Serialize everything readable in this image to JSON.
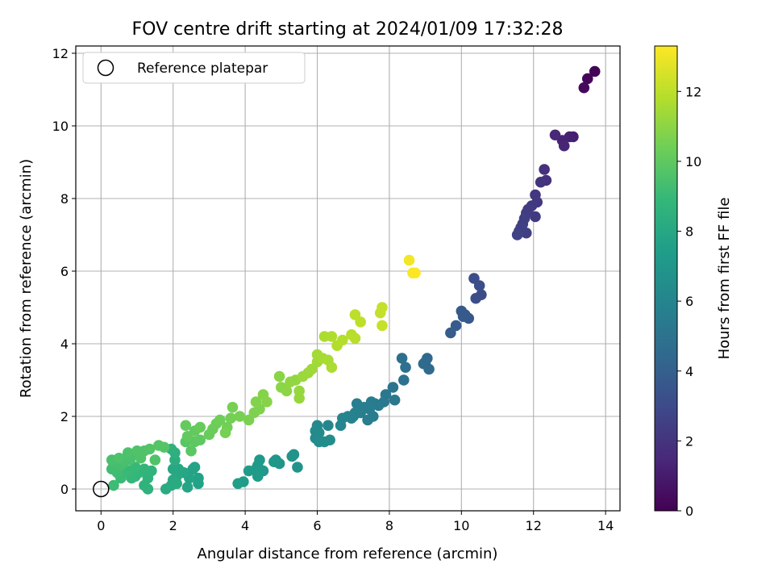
{
  "chart_data": {
    "type": "scatter",
    "title": "FOV centre drift starting at 2024/01/09 17:32:28",
    "xlabel": "Angular distance from reference (arcmin)",
    "ylabel": "Rotation from reference (arcmin)",
    "xlim": [
      -0.7,
      14.4
    ],
    "ylim": [
      -0.6,
      12.2
    ],
    "xticks": [
      0,
      2,
      4,
      6,
      8,
      10,
      12,
      14
    ],
    "yticks": [
      0,
      2,
      4,
      6,
      8,
      10,
      12
    ],
    "grid": true,
    "legend": {
      "placement": "upper-left",
      "entries": [
        "Reference platepar"
      ]
    },
    "reference_point": {
      "x": 0,
      "y": 0,
      "label": "Reference platepar"
    },
    "colorbar": {
      "label": "Hours from first FF file",
      "colormap": "viridis",
      "range": [
        0,
        13.3
      ],
      "ticks": [
        0,
        2,
        4,
        6,
        8,
        10,
        12
      ]
    },
    "series": [
      {
        "color_variable": "Hours from first FF file",
        "points": [
          {
            "x": 13.7,
            "y": 11.5,
            "c": 0.1
          },
          {
            "x": 13.5,
            "y": 11.3,
            "c": 0.2
          },
          {
            "x": 13.4,
            "y": 11.05,
            "c": 0.3
          },
          {
            "x": 13.1,
            "y": 9.7,
            "c": 1.1
          },
          {
            "x": 13.0,
            "y": 9.7,
            "c": 1.2
          },
          {
            "x": 12.8,
            "y": 9.6,
            "c": 1.3
          },
          {
            "x": 12.85,
            "y": 9.45,
            "c": 1.4
          },
          {
            "x": 12.6,
            "y": 9.75,
            "c": 1.5
          },
          {
            "x": 12.35,
            "y": 8.5,
            "c": 1.9
          },
          {
            "x": 12.2,
            "y": 8.45,
            "c": 2.0
          },
          {
            "x": 12.3,
            "y": 8.8,
            "c": 1.9
          },
          {
            "x": 12.05,
            "y": 8.1,
            "c": 2.1
          },
          {
            "x": 12.1,
            "y": 7.9,
            "c": 2.2
          },
          {
            "x": 11.95,
            "y": 7.8,
            "c": 2.3
          },
          {
            "x": 11.85,
            "y": 7.7,
            "c": 2.35
          },
          {
            "x": 11.8,
            "y": 7.6,
            "c": 2.4
          },
          {
            "x": 11.75,
            "y": 7.45,
            "c": 2.45
          },
          {
            "x": 12.05,
            "y": 7.5,
            "c": 2.3
          },
          {
            "x": 11.7,
            "y": 7.3,
            "c": 2.5
          },
          {
            "x": 11.65,
            "y": 7.2,
            "c": 2.55
          },
          {
            "x": 11.6,
            "y": 7.1,
            "c": 2.6
          },
          {
            "x": 11.55,
            "y": 7.0,
            "c": 2.65
          },
          {
            "x": 11.8,
            "y": 7.05,
            "c": 2.5
          },
          {
            "x": 10.55,
            "y": 5.35,
            "c": 3.1
          },
          {
            "x": 10.5,
            "y": 5.6,
            "c": 3.2
          },
          {
            "x": 10.4,
            "y": 5.25,
            "c": 3.2
          },
          {
            "x": 10.35,
            "y": 5.8,
            "c": 3.15
          },
          {
            "x": 10.2,
            "y": 4.7,
            "c": 3.6
          },
          {
            "x": 10.1,
            "y": 4.8,
            "c": 3.7
          },
          {
            "x": 10.0,
            "y": 4.9,
            "c": 3.7
          },
          {
            "x": 10.05,
            "y": 4.75,
            "c": 3.75
          },
          {
            "x": 9.85,
            "y": 4.5,
            "c": 3.85
          },
          {
            "x": 9.7,
            "y": 4.3,
            "c": 3.9
          },
          {
            "x": 9.05,
            "y": 3.6,
            "c": 4.5
          },
          {
            "x": 9.0,
            "y": 3.5,
            "c": 4.55
          },
          {
            "x": 8.95,
            "y": 3.45,
            "c": 4.6
          },
          {
            "x": 9.1,
            "y": 3.3,
            "c": 4.6
          },
          {
            "x": 8.35,
            "y": 3.6,
            "c": 4.85
          },
          {
            "x": 8.45,
            "y": 3.35,
            "c": 4.9
          },
          {
            "x": 8.4,
            "y": 3.0,
            "c": 5.0
          },
          {
            "x": 8.1,
            "y": 2.8,
            "c": 5.2
          },
          {
            "x": 7.9,
            "y": 2.6,
            "c": 5.3
          },
          {
            "x": 8.15,
            "y": 2.45,
            "c": 5.3
          },
          {
            "x": 7.85,
            "y": 2.4,
            "c": 5.4
          },
          {
            "x": 7.7,
            "y": 2.3,
            "c": 5.45
          },
          {
            "x": 7.6,
            "y": 2.35,
            "c": 5.5
          },
          {
            "x": 7.5,
            "y": 2.4,
            "c": 5.55
          },
          {
            "x": 7.45,
            "y": 2.2,
            "c": 5.6
          },
          {
            "x": 7.3,
            "y": 2.25,
            "c": 5.65
          },
          {
            "x": 7.1,
            "y": 2.35,
            "c": 5.7
          },
          {
            "x": 7.2,
            "y": 2.1,
            "c": 5.75
          },
          {
            "x": 7.05,
            "y": 2.1,
            "c": 5.8
          },
          {
            "x": 7.55,
            "y": 2.0,
            "c": 5.6
          },
          {
            "x": 7.4,
            "y": 1.9,
            "c": 5.7
          },
          {
            "x": 7.0,
            "y": 2.0,
            "c": 5.85
          },
          {
            "x": 6.95,
            "y": 1.95,
            "c": 5.9
          },
          {
            "x": 6.85,
            "y": 2.0,
            "c": 5.95
          },
          {
            "x": 6.7,
            "y": 1.95,
            "c": 6.0
          },
          {
            "x": 6.65,
            "y": 1.75,
            "c": 6.1
          },
          {
            "x": 6.3,
            "y": 1.75,
            "c": 6.2
          },
          {
            "x": 6.0,
            "y": 1.75,
            "c": 6.3
          },
          {
            "x": 5.95,
            "y": 1.6,
            "c": 6.35
          },
          {
            "x": 5.95,
            "y": 1.4,
            "c": 6.4
          },
          {
            "x": 6.05,
            "y": 1.3,
            "c": 6.45
          },
          {
            "x": 6.2,
            "y": 1.3,
            "c": 6.5
          },
          {
            "x": 6.35,
            "y": 1.35,
            "c": 6.5
          },
          {
            "x": 6.05,
            "y": 1.55,
            "c": 6.4
          },
          {
            "x": 5.45,
            "y": 0.6,
            "c": 6.8
          },
          {
            "x": 5.35,
            "y": 0.95,
            "c": 6.75
          },
          {
            "x": 5.3,
            "y": 0.9,
            "c": 6.8
          },
          {
            "x": 4.95,
            "y": 0.7,
            "c": 6.9
          },
          {
            "x": 4.85,
            "y": 0.8,
            "c": 6.95
          },
          {
            "x": 4.8,
            "y": 0.75,
            "c": 7.0
          },
          {
            "x": 4.5,
            "y": 0.5,
            "c": 7.05
          },
          {
            "x": 4.4,
            "y": 0.8,
            "c": 7.1
          },
          {
            "x": 4.35,
            "y": 0.65,
            "c": 7.15
          },
          {
            "x": 4.3,
            "y": 0.55,
            "c": 7.2
          },
          {
            "x": 4.35,
            "y": 0.35,
            "c": 7.25
          },
          {
            "x": 4.1,
            "y": 0.5,
            "c": 7.3
          },
          {
            "x": 3.95,
            "y": 0.2,
            "c": 7.35
          },
          {
            "x": 3.8,
            "y": 0.15,
            "c": 7.4
          },
          {
            "x": 2.7,
            "y": 0.15,
            "c": 7.6
          },
          {
            "x": 2.7,
            "y": 0.3,
            "c": 7.6
          },
          {
            "x": 2.55,
            "y": 0.55,
            "c": 7.65
          },
          {
            "x": 2.6,
            "y": 0.6,
            "c": 7.7
          },
          {
            "x": 2.45,
            "y": 0.3,
            "c": 7.75
          },
          {
            "x": 2.4,
            "y": 0.05,
            "c": 7.8
          },
          {
            "x": 2.3,
            "y": 0.45,
            "c": 7.85
          },
          {
            "x": 2.15,
            "y": 0.55,
            "c": 7.9
          },
          {
            "x": 2.0,
            "y": 0.55,
            "c": 7.95
          },
          {
            "x": 2.1,
            "y": 0.35,
            "c": 8.0
          },
          {
            "x": 2.0,
            "y": 0.25,
            "c": 8.05
          },
          {
            "x": 1.95,
            "y": 0.1,
            "c": 8.1
          },
          {
            "x": 1.8,
            "y": 0.0,
            "c": 8.15
          },
          {
            "x": 2.1,
            "y": 0.15,
            "c": 8.1
          },
          {
            "x": 2.05,
            "y": 0.8,
            "c": 8.3
          },
          {
            "x": 2.05,
            "y": 1.0,
            "c": 8.4
          },
          {
            "x": 1.95,
            "y": 1.1,
            "c": 8.45
          },
          {
            "x": 1.3,
            "y": 0.0,
            "c": 8.5
          },
          {
            "x": 1.2,
            "y": 0.1,
            "c": 8.55
          },
          {
            "x": 1.3,
            "y": 0.3,
            "c": 8.6
          },
          {
            "x": 1.4,
            "y": 0.5,
            "c": 8.65
          },
          {
            "x": 1.2,
            "y": 0.55,
            "c": 8.7
          },
          {
            "x": 1.05,
            "y": 0.45,
            "c": 8.75
          },
          {
            "x": 0.95,
            "y": 0.35,
            "c": 8.8
          },
          {
            "x": 0.85,
            "y": 0.3,
            "c": 8.85
          },
          {
            "x": 0.95,
            "y": 0.6,
            "c": 8.9
          },
          {
            "x": 0.75,
            "y": 0.5,
            "c": 8.95
          },
          {
            "x": 0.65,
            "y": 0.4,
            "c": 9.0
          },
          {
            "x": 0.55,
            "y": 0.3,
            "c": 9.05
          },
          {
            "x": 0.35,
            "y": 0.1,
            "c": 9.1
          },
          {
            "x": 0.45,
            "y": 0.45,
            "c": 9.15
          },
          {
            "x": 0.3,
            "y": 0.55,
            "c": 9.2
          },
          {
            "x": 0.35,
            "y": 0.7,
            "c": 9.25
          },
          {
            "x": 0.55,
            "y": 0.65,
            "c": 9.3
          },
          {
            "x": 0.65,
            "y": 0.75,
            "c": 9.35
          },
          {
            "x": 0.8,
            "y": 0.8,
            "c": 9.4
          },
          {
            "x": 0.9,
            "y": 0.95,
            "c": 9.45
          },
          {
            "x": 0.75,
            "y": 1.0,
            "c": 9.5
          },
          {
            "x": 1.0,
            "y": 1.05,
            "c": 9.55
          },
          {
            "x": 1.2,
            "y": 1.05,
            "c": 9.6
          },
          {
            "x": 1.1,
            "y": 0.85,
            "c": 9.6
          },
          {
            "x": 1.35,
            "y": 1.1,
            "c": 9.65
          },
          {
            "x": 1.6,
            "y": 1.2,
            "c": 9.7
          },
          {
            "x": 1.75,
            "y": 1.15,
            "c": 9.7
          },
          {
            "x": 1.5,
            "y": 0.8,
            "c": 9.6
          },
          {
            "x": 0.5,
            "y": 0.85,
            "c": 9.5
          },
          {
            "x": 0.3,
            "y": 0.8,
            "c": 9.4
          },
          {
            "x": 2.35,
            "y": 1.3,
            "c": 9.8
          },
          {
            "x": 2.5,
            "y": 1.05,
            "c": 9.85
          },
          {
            "x": 2.6,
            "y": 1.3,
            "c": 9.9
          },
          {
            "x": 2.75,
            "y": 1.35,
            "c": 9.95
          },
          {
            "x": 2.4,
            "y": 1.45,
            "c": 10.0
          },
          {
            "x": 2.6,
            "y": 1.6,
            "c": 10.05
          },
          {
            "x": 2.35,
            "y": 1.75,
            "c": 10.1
          },
          {
            "x": 2.75,
            "y": 1.7,
            "c": 10.15
          },
          {
            "x": 3.0,
            "y": 1.5,
            "c": 10.2
          },
          {
            "x": 3.1,
            "y": 1.65,
            "c": 10.25
          },
          {
            "x": 3.2,
            "y": 1.8,
            "c": 10.3
          },
          {
            "x": 3.3,
            "y": 1.9,
            "c": 10.35
          },
          {
            "x": 3.5,
            "y": 1.7,
            "c": 10.4
          },
          {
            "x": 3.6,
            "y": 1.95,
            "c": 10.45
          },
          {
            "x": 3.45,
            "y": 1.55,
            "c": 10.5
          },
          {
            "x": 3.65,
            "y": 2.25,
            "c": 10.5
          },
          {
            "x": 3.85,
            "y": 2.0,
            "c": 10.55
          },
          {
            "x": 4.1,
            "y": 1.9,
            "c": 10.6
          },
          {
            "x": 4.25,
            "y": 2.1,
            "c": 10.65
          },
          {
            "x": 4.4,
            "y": 2.2,
            "c": 10.7
          },
          {
            "x": 4.3,
            "y": 2.4,
            "c": 10.75
          },
          {
            "x": 4.5,
            "y": 2.6,
            "c": 10.8
          },
          {
            "x": 4.6,
            "y": 2.4,
            "c": 10.85
          },
          {
            "x": 4.95,
            "y": 3.1,
            "c": 10.9
          },
          {
            "x": 5.0,
            "y": 2.8,
            "c": 10.95
          },
          {
            "x": 5.15,
            "y": 2.7,
            "c": 11.0
          },
          {
            "x": 5.25,
            "y": 2.95,
            "c": 11.05
          },
          {
            "x": 5.4,
            "y": 3.0,
            "c": 11.1
          },
          {
            "x": 5.5,
            "y": 2.7,
            "c": 11.15
          },
          {
            "x": 5.5,
            "y": 2.5,
            "c": 11.2
          },
          {
            "x": 5.6,
            "y": 3.1,
            "c": 11.25
          },
          {
            "x": 5.75,
            "y": 3.2,
            "c": 11.3
          },
          {
            "x": 5.85,
            "y": 3.3,
            "c": 11.35
          },
          {
            "x": 6.0,
            "y": 3.5,
            "c": 11.4
          },
          {
            "x": 6.0,
            "y": 3.7,
            "c": 11.45
          },
          {
            "x": 6.15,
            "y": 3.6,
            "c": 11.5
          },
          {
            "x": 6.3,
            "y": 3.55,
            "c": 11.55
          },
          {
            "x": 6.4,
            "y": 3.35,
            "c": 11.6
          },
          {
            "x": 6.2,
            "y": 4.2,
            "c": 11.65
          },
          {
            "x": 6.4,
            "y": 4.2,
            "c": 11.7
          },
          {
            "x": 6.55,
            "y": 3.95,
            "c": 11.75
          },
          {
            "x": 6.7,
            "y": 4.1,
            "c": 11.8
          },
          {
            "x": 6.95,
            "y": 4.25,
            "c": 11.85
          },
          {
            "x": 7.05,
            "y": 4.15,
            "c": 11.9
          },
          {
            "x": 7.05,
            "y": 4.8,
            "c": 11.95
          },
          {
            "x": 7.2,
            "y": 4.6,
            "c": 12.0
          },
          {
            "x": 7.75,
            "y": 4.85,
            "c": 12.1
          },
          {
            "x": 7.8,
            "y": 5.0,
            "c": 12.15
          },
          {
            "x": 7.8,
            "y": 4.5,
            "c": 12.2
          },
          {
            "x": 8.55,
            "y": 6.3,
            "c": 13.1
          },
          {
            "x": 8.65,
            "y": 5.95,
            "c": 13.2
          },
          {
            "x": 8.72,
            "y": 5.95,
            "c": 13.3
          }
        ]
      }
    ]
  }
}
